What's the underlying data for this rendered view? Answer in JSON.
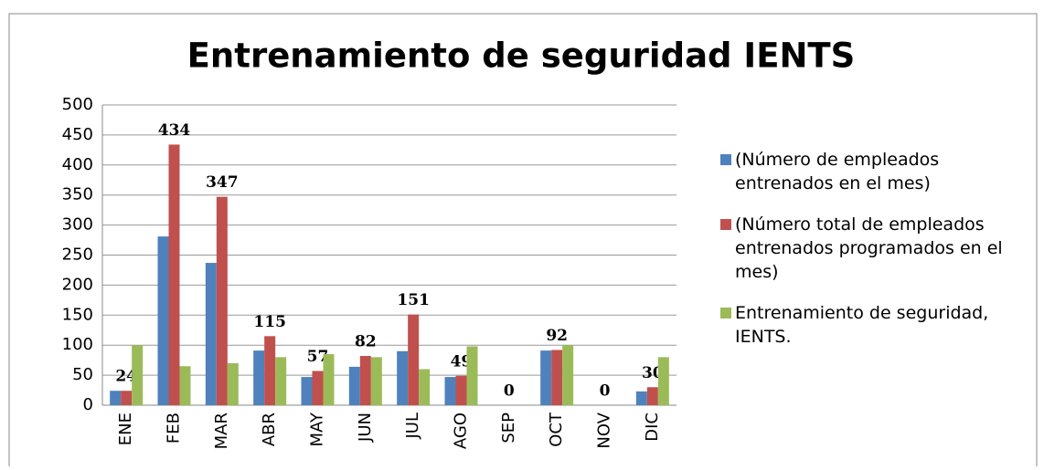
{
  "chart_data": {
    "type": "bar",
    "title": "Entrenamiento de seguridad IENTS",
    "categories": [
      "ENE",
      "FEB",
      "MAR",
      "ABR",
      "MAY",
      "JUN",
      "JUL",
      "AGO",
      "SEP",
      "OCT",
      "NOV",
      "DIC"
    ],
    "series": [
      {
        "name": "(Número de empleados entrenados en el mes)",
        "color": "#4f81bd",
        "values": [
          24,
          281,
          237,
          91,
          47,
          64,
          90,
          47,
          0,
          91,
          0,
          23
        ]
      },
      {
        "name": "(Número total de empleados entrenados programados en el mes)",
        "color": "#c0504d",
        "values": [
          24,
          434,
          347,
          115,
          57,
          82,
          151,
          49,
          0,
          92,
          0,
          30
        ],
        "data_labels": true
      },
      {
        "name": "Entrenamiento de seguridad, IENTS.",
        "color": "#9bbb59",
        "values": [
          100,
          65,
          70,
          80,
          85,
          80,
          60,
          98,
          0,
          100,
          0,
          80
        ]
      }
    ],
    "ylim": [
      0,
      500
    ],
    "yticks": [
      0,
      50,
      100,
      150,
      200,
      250,
      300,
      350,
      400,
      450,
      500
    ],
    "grid": true,
    "legend": "right"
  }
}
